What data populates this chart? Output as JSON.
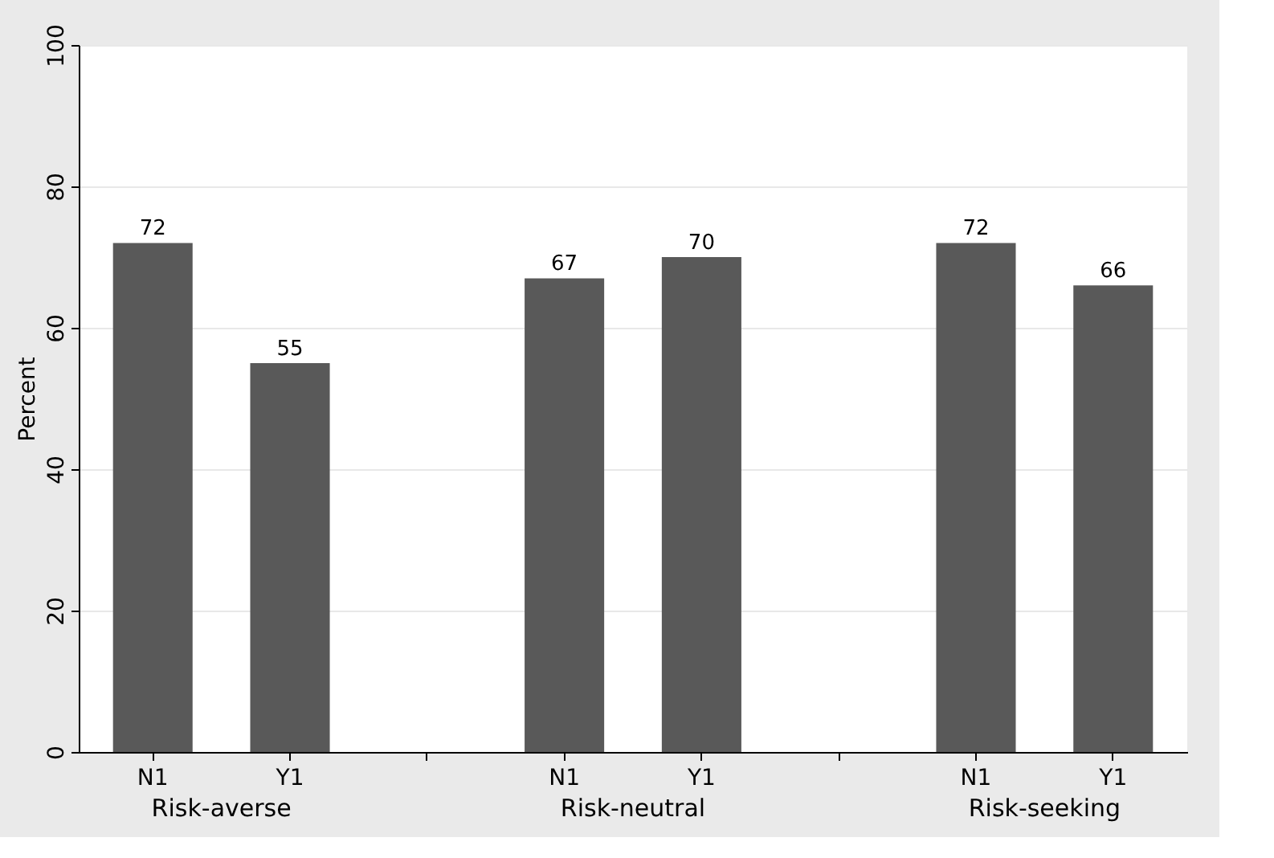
{
  "chart_data": {
    "type": "bar",
    "ylabel": "Percent",
    "categories": [
      "N1",
      "Y1",
      null,
      "N1",
      "Y1",
      null,
      "N1",
      "Y1"
    ],
    "values": [
      72,
      55,
      null,
      67,
      70,
      null,
      72,
      66
    ],
    "color": "#595959",
    "ylim": [
      0,
      100
    ],
    "yticks": [
      0,
      20,
      40,
      60,
      80,
      100
    ],
    "grid": "y",
    "data_labels": true,
    "annotations": [
      "Risk-averse",
      "Risk-neutral",
      "Risk-seeking"
    ]
  }
}
